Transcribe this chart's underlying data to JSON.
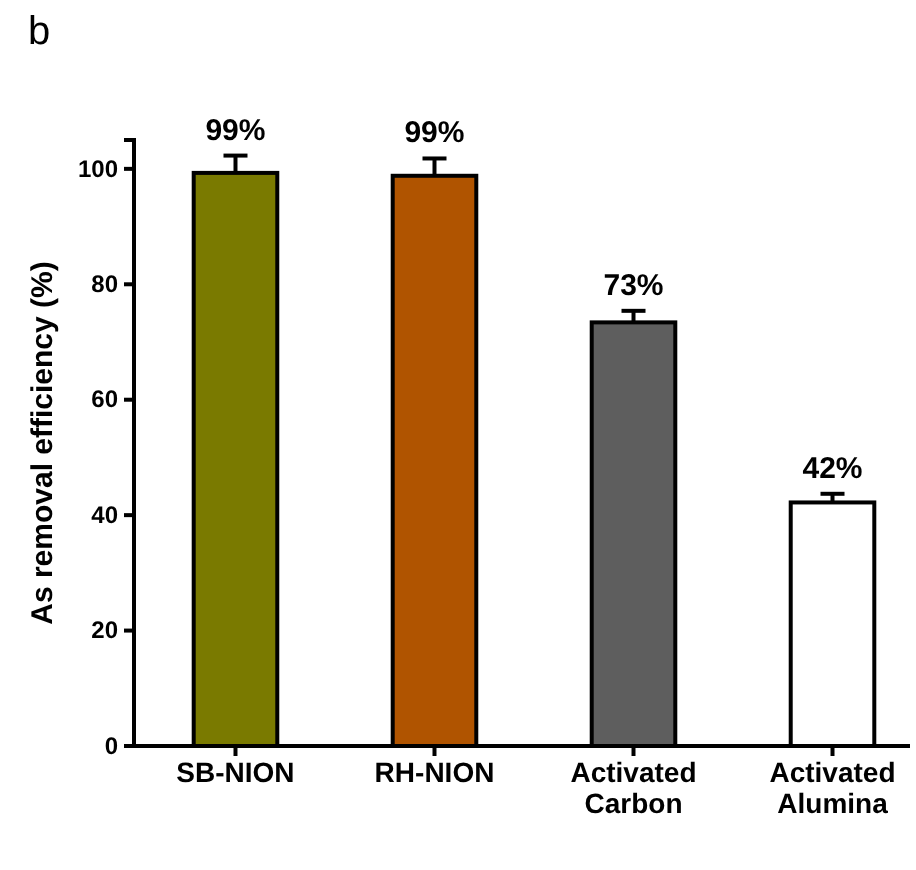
{
  "chart_data": {
    "type": "bar",
    "title": "b",
    "ylabel": "As removal efficiency (%)",
    "categories": [
      "SB-NION",
      "RH-NION",
      "Activated Carbon",
      "Activated Alumina"
    ],
    "values": [
      99.3,
      98.8,
      73.4,
      42.2
    ],
    "errors": [
      3,
      3,
      2,
      1.5
    ],
    "value_labels": [
      "99%",
      "99%",
      "73%",
      "42%"
    ],
    "colors": [
      "#7a7a00",
      "#b05400",
      "#5e5e5e",
      "#ffffff"
    ],
    "ylim": [
      0,
      105
    ],
    "yticks": [
      0,
      20,
      40,
      60,
      80,
      100
    ],
    "grid": false
  }
}
